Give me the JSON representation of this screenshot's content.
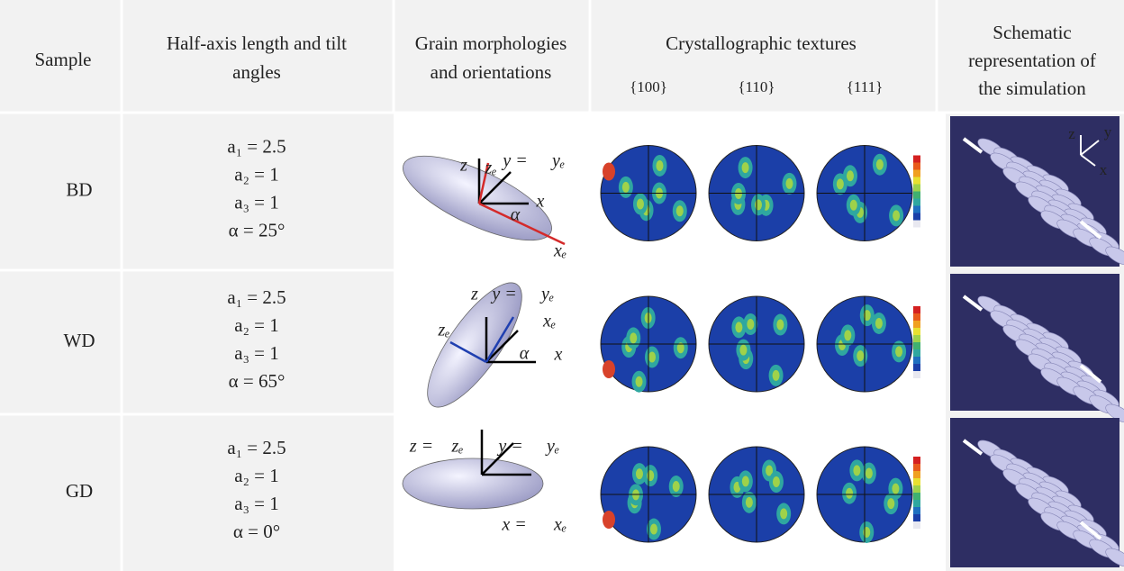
{
  "table": {
    "headers": [
      [
        "Sample"
      ],
      [
        "Half-axis length and tilt",
        "angles"
      ],
      [
        "Grain morphologies",
        "and orientations"
      ],
      [
        "Crystallographic textures"
      ],
      [
        "Schematic",
        "representation of",
        "the simulation"
      ]
    ],
    "texture_subheaders": [
      "{100}",
      "{110}",
      "{111}"
    ],
    "rows": [
      {
        "sample": "BD",
        "params": [
          "a₁ = 2.5",
          "a₂ = 1",
          "a₃ = 1",
          "α = 25°"
        ],
        "morphology_labels": [
          "z",
          "zₑ",
          "y =",
          "yₑ",
          "x",
          "α",
          "xₑ"
        ],
        "schematic_labels": [
          "z",
          "y",
          "x"
        ]
      },
      {
        "sample": "WD",
        "params": [
          "a₁ = 2.5",
          "a₂ = 1",
          "a₃ = 1",
          "α = 65°"
        ],
        "morphology_labels": [
          "z",
          "y =",
          "yₑ",
          "xₑ",
          "zₑ",
          "α",
          "x"
        ]
      },
      {
        "sample": "GD",
        "params": [
          "a₁ = 2.5",
          "a₂ = 1",
          "a₃ = 1",
          "α = 0°"
        ],
        "morphology_labels": [
          "z =",
          "zₑ",
          "y =",
          "yₑ",
          "x =",
          "xₑ"
        ]
      }
    ]
  }
}
